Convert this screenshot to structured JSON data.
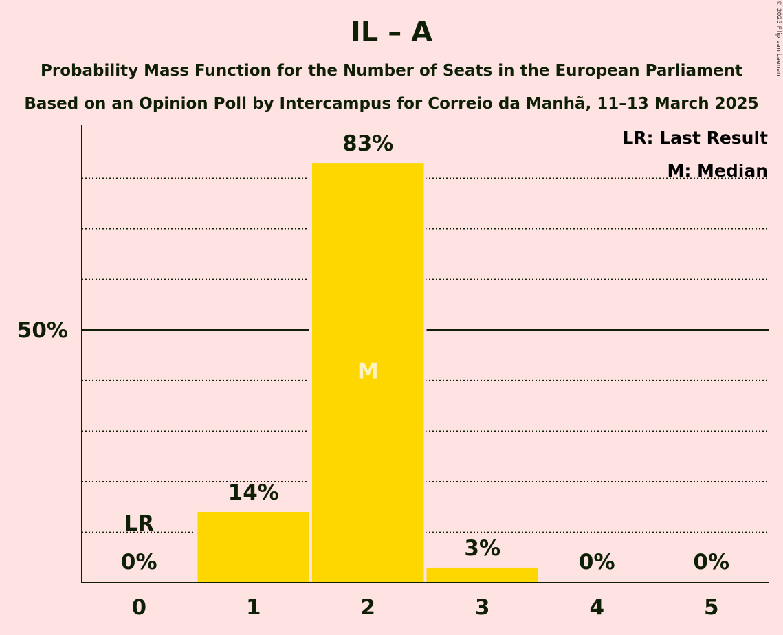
{
  "title": "IL – A",
  "subtitle1": "Probability Mass Function for the Number of Seats in the European Parliament",
  "subtitle2": "Based on an Opinion Poll by Intercampus for Correio da Manhã, 11–13 March 2025",
  "copyright": "© 2025 Filip van Laenen",
  "legend": {
    "lr": "LR: Last Result",
    "m": "M: Median"
  },
  "colors": {
    "background": "#FFE2E2",
    "bar": "#FFD700",
    "text": "#0F1F05",
    "median_label": "#FFF1C0"
  },
  "chart_data": {
    "type": "bar",
    "categories": [
      "0",
      "1",
      "2",
      "3",
      "4",
      "5"
    ],
    "values": [
      0,
      14,
      83,
      3,
      0,
      0
    ],
    "value_labels": [
      "0%",
      "14%",
      "83%",
      "3%",
      "0%",
      "0%"
    ],
    "ylim": [
      0,
      90
    ],
    "y_tick_label": "50%",
    "y_tick_value": 50,
    "gridlines_dotted": [
      10,
      20,
      30,
      40,
      60,
      70,
      80
    ],
    "last_result_index": 0,
    "last_result_label": "LR",
    "median_index": 2,
    "median_label": "M"
  }
}
